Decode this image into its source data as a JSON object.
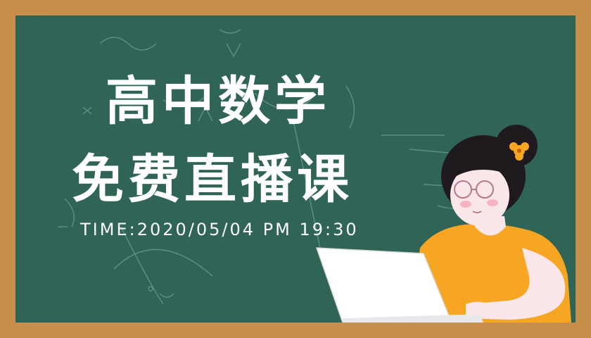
{
  "title": {
    "line1": "高中数学",
    "line2": "免费直播课"
  },
  "time_text": "TIME:2020/05/04 PM 19:30",
  "colors": {
    "frame": "#c68f4b",
    "board": "#2f6457",
    "chalk": "#ffffff",
    "shirt": "#f6a623",
    "hair": "#1f1a1d",
    "skin": "#fbe6ea"
  }
}
